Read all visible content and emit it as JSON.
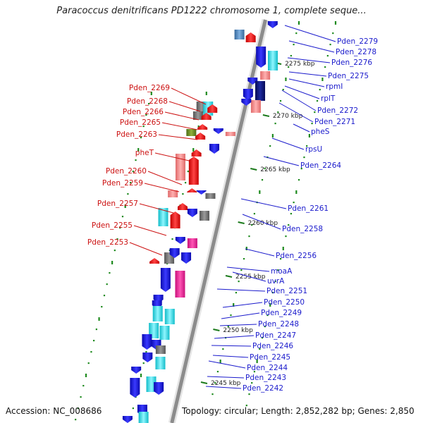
{
  "title": "Paracoccus denitrificans PD1222 chromosome 1, complete seque...",
  "accession": "Accession: NC_008686",
  "topology": "Topology: circular; Length: 2,852,282 bp; Genes: 2,850",
  "scale_labels": [
    "2275 kbp",
    "2270 kbp",
    "2265 kbp",
    "2260 kbp",
    "2255 kbp",
    "2250 kbp",
    "2245 kbp"
  ],
  "right_labels": [
    "Pden_2279",
    "Pden_2278",
    "Pden_2276",
    "Pden_2275",
    "rpmI",
    "rplT",
    "Pden_2272",
    "Pden_2271",
    "pheS",
    "rpsU",
    "Pden_2264",
    "Pden_2261",
    "Pden_2258",
    "Pden_2256",
    "moaA",
    "uvrA",
    "Pden_2251",
    "Pden_2250",
    "Pden_2249",
    "Pden_2248",
    "Pden_2247",
    "Pden_2246",
    "Pden_2245",
    "Pden_2244",
    "Pden_2243",
    "Pden_2242"
  ],
  "left_labels": [
    "Pden_2269",
    "Pden_2268",
    "Pden_2266",
    "Pden_2265",
    "Pden_2263",
    "pheT",
    "Pden_2260",
    "Pden_2259",
    "Pden_2257",
    "Pden_2255",
    "Pden_2253"
  ],
  "colors": {
    "backbone": "#8c8c8c",
    "reverse_strand": "#1515e0",
    "forward_strand": "#ee1111",
    "cyan": "#22e0e8",
    "pink": "#ee2299",
    "salmon": "#f08888",
    "navy": "#0b1377",
    "gray": "#6e6e6e",
    "olive": "#6a8a22",
    "steel": "#4f84b8",
    "right_label": "#1a1acc",
    "left_label": "#cc1111",
    "dots": "#1e8a1e"
  }
}
